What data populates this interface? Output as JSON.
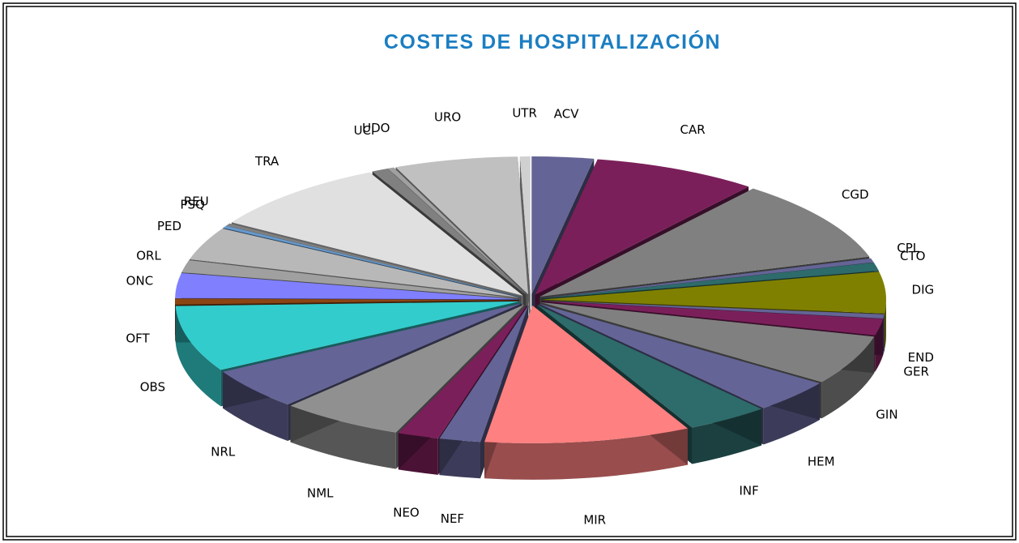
{
  "chart_data": {
    "type": "pie",
    "title": "COSTES  DE HOSPITALIZACIÓN",
    "categories": [
      "ACV",
      "CAR",
      "CGD",
      "CPL",
      "CTO",
      "DIG",
      "END",
      "GER",
      "GIN",
      "HEM",
      "INF",
      "MIR",
      "NEF",
      "NEO",
      "NML",
      "NRL",
      "OBS",
      "OFT",
      "ONC",
      "ORL",
      "PED",
      "PSQ",
      "REU",
      "TRA",
      "UCI",
      "UDO",
      "URO",
      "UTR"
    ],
    "values": [
      3,
      8,
      10,
      0.5,
      1,
      5,
      0.5,
      2,
      6,
      4,
      4,
      10,
      2,
      2,
      6,
      5,
      8,
      0.7,
      3,
      1.5,
      4,
      0.3,
      0.3,
      9,
      0.8,
      0.3,
      6,
      0.5
    ],
    "colors": [
      "#646496",
      "#7b1f5a",
      "#808080",
      "#646496",
      "#2e6b6b",
      "#808000",
      "#646496",
      "#7b1f5a",
      "#808080",
      "#646496",
      "#2e6b6b",
      "#ff8080",
      "#646496",
      "#7b1f5a",
      "#909090",
      "#646496",
      "#33cccc",
      "#8b4513",
      "#8080ff",
      "#a0a0a0",
      "#b8b8b8",
      "#6699cc",
      "#808080",
      "#e0e0e0",
      "#808080",
      "#a0a0a0",
      "#c0c0c0",
      "#d0d0d0"
    ]
  }
}
